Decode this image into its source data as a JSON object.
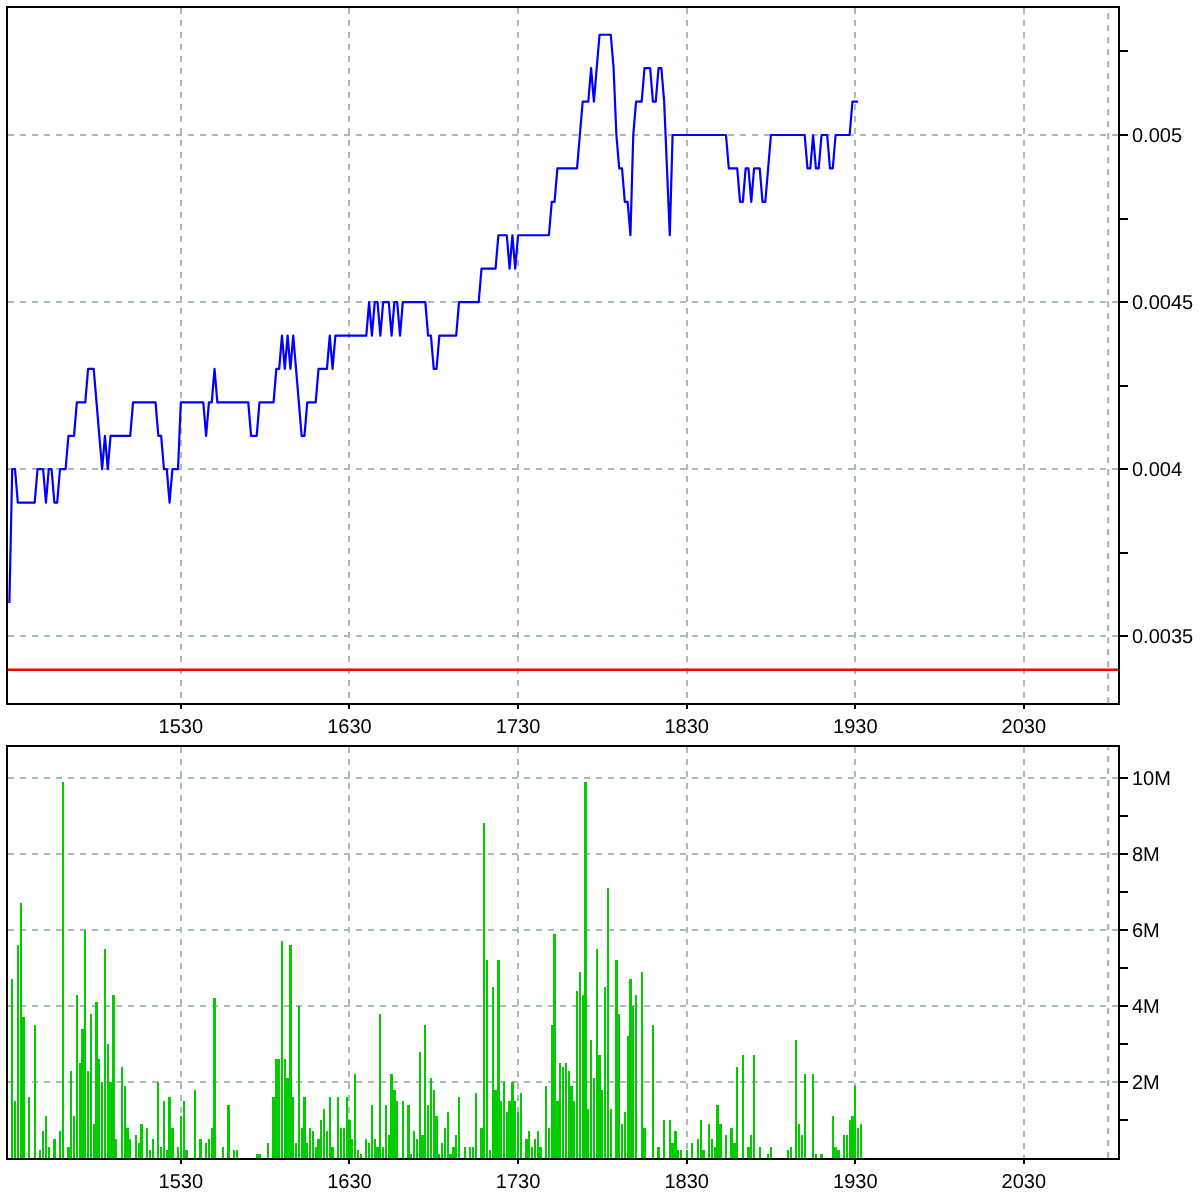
{
  "chart_data": [
    {
      "type": "line",
      "color": "#0000ff",
      "categories": [
        null,
        null,
        null,
        null,
        null,
        null,
        null,
        null,
        null,
        null,
        null,
        null,
        null,
        null,
        null,
        null,
        null,
        null,
        null,
        null,
        null,
        null,
        null,
        null,
        null,
        null,
        null,
        null,
        null,
        null,
        null,
        null,
        null,
        null,
        null,
        null,
        null,
        null,
        null,
        null,
        null,
        null,
        null,
        null,
        null,
        null,
        null,
        null,
        null,
        null,
        null,
        null,
        null,
        null,
        null,
        null,
        null,
        null,
        null,
        null,
        null,
        "1530",
        null,
        null,
        null,
        null,
        null,
        null,
        null,
        null,
        null,
        null,
        null,
        null,
        null,
        null,
        null,
        null,
        null,
        null,
        null,
        null,
        null,
        null,
        null,
        null,
        null,
        null,
        null,
        null,
        null,
        null,
        null,
        null,
        null,
        null,
        null,
        null,
        null,
        null,
        null,
        null,
        null,
        null,
        null,
        null,
        null,
        null,
        null,
        null,
        null,
        null,
        null,
        null,
        null,
        null,
        null,
        null,
        null,
        null,
        null,
        "1630",
        null,
        null,
        null,
        null,
        null,
        null,
        null,
        null,
        null,
        null,
        null,
        null,
        null,
        null,
        null,
        null,
        null,
        null,
        null,
        null,
        null,
        null,
        null,
        null,
        null,
        null,
        null,
        null,
        null,
        null,
        null,
        null,
        null,
        null,
        null,
        null,
        null,
        null,
        null,
        null,
        null,
        null,
        null,
        null,
        null,
        null,
        null,
        null,
        null,
        null,
        null,
        null,
        null,
        null,
        null,
        null,
        null,
        null,
        null,
        "1730",
        null,
        null,
        null,
        null,
        null,
        null,
        null,
        null,
        null,
        null,
        null,
        null,
        null,
        null,
        null,
        null,
        null,
        null,
        null,
        null,
        null,
        null,
        null,
        null,
        null,
        null,
        null,
        null,
        null,
        null,
        null,
        null,
        null,
        null,
        null,
        null,
        null,
        null,
        null,
        null,
        null,
        null,
        null,
        null,
        null,
        null,
        null,
        null,
        null,
        null,
        null,
        null,
        null,
        null,
        null,
        null,
        null,
        null,
        null,
        "1830",
        null,
        null,
        null,
        null,
        null,
        null,
        null,
        null,
        null,
        null,
        null,
        null,
        null,
        null,
        null,
        null,
        null,
        null,
        null,
        null,
        null,
        null,
        null,
        null,
        null,
        null,
        null,
        null,
        null,
        null,
        null,
        null,
        null,
        null,
        null,
        null,
        null,
        null,
        null,
        null,
        null,
        null,
        null,
        null,
        null,
        null,
        null,
        null,
        null,
        null,
        null,
        null,
        null,
        null,
        null,
        null,
        null,
        null,
        null,
        "1930",
        null,
        null,
        null,
        null,
        null,
        null,
        null,
        null,
        null,
        null,
        null,
        null,
        null,
        null,
        null,
        null,
        null,
        null,
        null,
        null,
        null,
        null,
        null,
        null,
        null,
        null,
        null,
        null,
        null,
        null,
        null,
        null,
        null,
        null,
        null,
        null,
        null,
        null,
        null,
        null,
        null,
        null,
        null,
        null,
        null,
        null,
        null,
        null,
        null,
        null,
        null,
        null,
        null,
        null,
        null,
        null,
        null,
        null,
        null,
        "2030",
        null,
        null,
        null,
        null,
        null,
        null,
        null,
        null,
        null,
        null,
        null,
        null,
        null,
        null,
        null,
        null,
        null,
        null,
        null,
        null,
        null,
        null,
        null,
        null,
        null,
        null,
        null,
        null,
        null,
        null,
        null,
        null,
        null
      ],
      "values": [
        0.0036,
        0.004,
        0.004,
        0.0039,
        0.0039,
        0.0039,
        0.0039,
        0.0039,
        0.0039,
        0.0039,
        0.004,
        0.004,
        0.004,
        0.0039,
        0.004,
        0.004,
        0.0039,
        0.0039,
        0.004,
        0.004,
        0.004,
        0.0041,
        0.0041,
        0.0041,
        0.0042,
        0.0042,
        0.0042,
        0.0042,
        0.0043,
        0.0043,
        0.0043,
        0.0042,
        0.0041,
        0.004,
        0.0041,
        0.004,
        0.0041,
        0.0041,
        0.0041,
        0.0041,
        0.0041,
        0.0041,
        0.0041,
        0.0041,
        0.0042,
        0.0042,
        0.0042,
        0.0042,
        0.0042,
        0.0042,
        0.0042,
        0.0042,
        0.0042,
        0.0041,
        0.0041,
        0.004,
        0.004,
        0.0039,
        0.004,
        0.004,
        0.004,
        0.0042,
        0.0042,
        0.0042,
        0.0042,
        0.0042,
        0.0042,
        0.0042,
        0.0042,
        0.0042,
        0.0041,
        0.0042,
        0.0042,
        0.0043,
        0.0042,
        0.0042,
        0.0042,
        0.0042,
        0.0042,
        0.0042,
        0.0042,
        0.0042,
        0.0042,
        0.0042,
        0.0042,
        0.0042,
        0.0041,
        0.0041,
        0.0041,
        0.0042,
        0.0042,
        0.0042,
        0.0042,
        0.0042,
        0.0042,
        0.0043,
        0.0043,
        0.0044,
        0.0043,
        0.0044,
        0.0043,
        0.0044,
        0.0043,
        0.0042,
        0.0041,
        0.0041,
        0.0042,
        0.0042,
        0.0042,
        0.0042,
        0.0043,
        0.0043,
        0.0043,
        0.0043,
        0.0044,
        0.0043,
        0.0044,
        0.0044,
        0.0044,
        0.0044,
        0.0044,
        0.0044,
        0.0044,
        0.0044,
        0.0044,
        0.0044,
        0.0044,
        0.0044,
        0.0045,
        0.0044,
        0.0045,
        0.0045,
        0.0044,
        0.0045,
        0.0045,
        0.0045,
        0.0044,
        0.0045,
        0.0045,
        0.0044,
        0.0045,
        0.0045,
        0.0045,
        0.0045,
        0.0045,
        0.0045,
        0.0045,
        0.0045,
        0.0045,
        0.0044,
        0.0044,
        0.0043,
        0.0043,
        0.0044,
        0.0044,
        0.0044,
        0.0044,
        0.0044,
        0.0044,
        0.0044,
        0.0045,
        0.0045,
        0.0045,
        0.0045,
        0.0045,
        0.0045,
        0.0045,
        0.0045,
        0.0046,
        0.0046,
        0.0046,
        0.0046,
        0.0046,
        0.0046,
        0.0047,
        0.0047,
        0.0047,
        0.0047,
        0.0046,
        0.0047,
        0.0046,
        0.0047,
        0.0047,
        0.0047,
        0.0047,
        0.0047,
        0.0047,
        0.0047,
        0.0047,
        0.0047,
        0.0047,
        0.0047,
        0.0047,
        0.0048,
        0.0048,
        0.0049,
        0.0049,
        0.0049,
        0.0049,
        0.0049,
        0.0049,
        0.0049,
        0.0049,
        0.005,
        0.0051,
        0.0051,
        0.0051,
        0.0052,
        0.0051,
        0.0052,
        0.0053,
        0.0053,
        0.0053,
        0.0053,
        0.0053,
        0.0052,
        0.005,
        0.0049,
        0.0049,
        0.0048,
        0.0048,
        0.0047,
        0.005,
        0.0051,
        0.0051,
        0.0051,
        0.0052,
        0.0052,
        0.0052,
        0.0051,
        0.0051,
        0.0052,
        0.0052,
        0.0051,
        0.0049,
        0.0047,
        0.005,
        0.005,
        0.005,
        0.005,
        0.005,
        0.005,
        0.005,
        0.005,
        0.005,
        0.005,
        0.005,
        0.005,
        0.005,
        0.005,
        0.005,
        0.005,
        0.005,
        0.005,
        0.005,
        0.005,
        0.0049,
        0.0049,
        0.0049,
        0.0049,
        0.0048,
        0.0048,
        0.0049,
        0.0049,
        0.0048,
        0.0049,
        0.0049,
        0.0049,
        0.0048,
        0.0048,
        0.0049,
        0.005,
        0.005,
        0.005,
        0.005,
        0.005,
        0.005,
        0.005,
        0.005,
        0.005,
        0.005,
        0.005,
        0.005,
        0.005,
        0.0049,
        0.0049,
        0.005,
        0.0049,
        0.0049,
        0.005,
        0.005,
        0.005,
        0.0049,
        0.0049,
        0.005,
        0.005,
        0.005,
        0.005,
        0.005,
        0.005,
        0.0051,
        0.0051,
        0.0051,
        null,
        null,
        null,
        null,
        null,
        null,
        null,
        null,
        null,
        null,
        null,
        null,
        null,
        null,
        null,
        null,
        null,
        null,
        null,
        null,
        null,
        null,
        null,
        null,
        null,
        null,
        null,
        null,
        null,
        null,
        null,
        null,
        null,
        null,
        null,
        null,
        null,
        null,
        null,
        null,
        null,
        null,
        null,
        null,
        null,
        null,
        null,
        null,
        null,
        null,
        null,
        null,
        null,
        null,
        null,
        null,
        null,
        null,
        null,
        null,
        null,
        null,
        null,
        null,
        null,
        null,
        null,
        null,
        null,
        null,
        null,
        null,
        null,
        null,
        null,
        null,
        null,
        null,
        null,
        null,
        null,
        null,
        null,
        null,
        null,
        null,
        null,
        null,
        null,
        null,
        null,
        null
      ],
      "ylim": [
        0.0033,
        0.00538
      ],
      "yticks": [
        0.0035,
        {
          "value": 0.00375,
          "label": null
        },
        0.004,
        {
          "value": 0.00425,
          "label": null
        },
        0.0045,
        {
          "value": 0.00475,
          "label": null
        },
        0.005,
        {
          "value": 0.00525,
          "label": null
        }
      ],
      "ref_lines": [
        {
          "axis": "y",
          "value": 0.0034,
          "color": "#ff0000"
        }
      ],
      "grid": true
    },
    {
      "type": "bar",
      "color": "#00cc00",
      "categories": [
        null,
        null,
        null,
        null,
        null,
        null,
        null,
        null,
        null,
        null,
        null,
        null,
        null,
        null,
        null,
        null,
        null,
        null,
        null,
        null,
        null,
        null,
        null,
        null,
        null,
        null,
        null,
        null,
        null,
        null,
        null,
        null,
        null,
        null,
        null,
        null,
        null,
        null,
        null,
        null,
        null,
        null,
        null,
        null,
        null,
        null,
        null,
        null,
        null,
        null,
        null,
        null,
        null,
        null,
        null,
        null,
        null,
        null,
        null,
        null,
        null,
        "1530",
        null,
        null,
        null,
        null,
        null,
        null,
        null,
        null,
        null,
        null,
        null,
        null,
        null,
        null,
        null,
        null,
        null,
        null,
        null,
        null,
        null,
        null,
        null,
        null,
        null,
        null,
        null,
        null,
        null,
        null,
        null,
        null,
        null,
        null,
        null,
        null,
        null,
        null,
        null,
        null,
        null,
        null,
        null,
        null,
        null,
        null,
        null,
        null,
        null,
        null,
        null,
        null,
        null,
        null,
        null,
        null,
        null,
        null,
        null,
        "1630",
        null,
        null,
        null,
        null,
        null,
        null,
        null,
        null,
        null,
        null,
        null,
        null,
        null,
        null,
        null,
        null,
        null,
        null,
        null,
        null,
        null,
        null,
        null,
        null,
        null,
        null,
        null,
        null,
        null,
        null,
        null,
        null,
        null,
        null,
        null,
        null,
        null,
        null,
        null,
        null,
        null,
        null,
        null,
        null,
        null,
        null,
        null,
        null,
        null,
        null,
        null,
        null,
        null,
        null,
        null,
        null,
        null,
        null,
        null,
        "1730",
        null,
        null,
        null,
        null,
        null,
        null,
        null,
        null,
        null,
        null,
        null,
        null,
        null,
        null,
        null,
        null,
        null,
        null,
        null,
        null,
        null,
        null,
        null,
        null,
        null,
        null,
        null,
        null,
        null,
        null,
        null,
        null,
        null,
        null,
        null,
        null,
        null,
        null,
        null,
        null,
        null,
        null,
        null,
        null,
        null,
        null,
        null,
        null,
        null,
        null,
        null,
        null,
        null,
        null,
        null,
        null,
        null,
        null,
        null,
        "1830",
        null,
        null,
        null,
        null,
        null,
        null,
        null,
        null,
        null,
        null,
        null,
        null,
        null,
        null,
        null,
        null,
        null,
        null,
        null,
        null,
        null,
        null,
        null,
        null,
        null,
        null,
        null,
        null,
        null,
        null,
        null,
        null,
        null,
        null,
        null,
        null,
        null,
        null,
        null,
        null,
        null,
        null,
        null,
        null,
        null,
        null,
        null,
        null,
        null,
        null,
        null,
        null,
        null,
        null,
        null,
        null,
        null,
        null,
        null,
        "1930",
        null,
        null,
        null,
        null,
        null,
        null,
        null,
        null,
        null,
        null,
        null,
        null,
        null,
        null,
        null,
        null,
        null,
        null,
        null,
        null,
        null,
        null,
        null,
        null,
        null,
        null,
        null,
        null,
        null,
        null,
        null,
        null,
        null,
        null,
        null,
        null,
        null,
        null,
        null,
        null,
        null,
        null,
        null,
        null,
        null,
        null,
        null,
        null,
        null,
        null,
        null,
        null,
        null,
        null,
        null,
        null,
        null,
        null,
        null,
        "2030",
        null,
        null,
        null,
        null,
        null,
        null,
        null,
        null,
        null,
        null,
        null,
        null,
        null,
        null,
        null,
        null,
        null,
        null,
        null,
        null,
        null,
        null,
        null,
        null,
        null,
        null,
        null,
        null,
        null,
        null,
        null,
        null,
        null
      ],
      "values": [
        null,
        4.7,
        1.5,
        5.6,
        6.7,
        3.7,
        null,
        1.6,
        null,
        3.5,
        null,
        0.2,
        0.7,
        1.1,
        0.3,
        null,
        0.5,
        null,
        0.7,
        9.9,
        null,
        0.3,
        2.3,
        1.1,
        4.3,
        2.5,
        3.4,
        6.0,
        2.3,
        3.8,
        0.9,
        4.1,
        2.6,
        2.0,
        5.5,
        3.0,
        2.0,
        4.3,
        0.5,
        null,
        2.4,
        1.9,
        0.8,
        0.5,
        null,
        0.6,
        0.4,
        0.9,
        null,
        0.8,
        0.2,
        0.5,
        null,
        2.0,
        0.3,
        1.5,
        0.2,
        1.6,
        0.8,
        null,
        0.3,
        1.1,
        1.5,
        0.2,
        null,
        null,
        1.8,
        null,
        0.5,
        null,
        0.4,
        0.5,
        0.8,
        4.2,
        null,
        null,
        0.3,
        null,
        1.4,
        null,
        0.2,
        0.2,
        null,
        null,
        null,
        null,
        null,
        null,
        0.1,
        0.1,
        null,
        null,
        0.4,
        null,
        1.6,
        2.6,
        2.6,
        5.7,
        2.6,
        2.1,
        5.6,
        1.6,
        0.4,
        4.0,
        0.8,
        1.6,
        0.4,
        0.8,
        0.7,
        0.3,
        0.5,
        1.0,
        1.3,
        0.7,
        1.6,
        0.3,
        null,
        1.6,
        0.8,
        0.8,
        1.6,
        1.0,
        0.5,
        2.2,
        0.2,
        0.1,
        null,
        0.5,
        0.4,
        1.4,
        0.5,
        0.3,
        3.8,
        0.3,
        1.4,
        0.6,
        2.2,
        1.8,
        1.5,
        null,
        1.5,
        null,
        1.4,
        0.1,
        0.7,
        0.5,
        2.8,
        0.6,
        3.5,
        1.4,
        2.1,
        1.8,
        1.1,
        0.1,
        0.4,
        0.8,
        1.2,
        0.1,
        0.3,
        0.6,
        1.6,
        null,
        0.3,
        null,
        0.3,
        0.3,
        1.7,
        null,
        0.8,
        8.8,
        5.2,
        0.2,
        4.5,
        1.8,
        5.2,
        1.5,
        2.0,
        1.2,
        1.5,
        2.0,
        1.5,
        1.2,
        1.7,
        null,
        0.5,
        0.7,
        0.3,
        0.5,
        0.7,
        0.3,
        null,
        1.9,
        0.8,
        3.5,
        5.9,
        1.5,
        2.5,
        2.4,
        2.5,
        2.3,
        1.9,
        1.5,
        4.4,
        4.9,
        4.3,
        9.9,
        1.3,
        3.1,
        2.1,
        5.5,
        2.7,
        1.8,
        4.5,
        7.1,
        1.3,
        null,
        5.2,
        3.8,
        0.9,
        1.2,
        3.2,
        4.7,
        4.0,
        4.3,
        null,
        4.9,
        0.8,
        null,
        null,
        3.5,
        null,
        0.3,
        null,
        1.0,
        null,
        1.0,
        0.4,
        0.7,
        0.2,
        0.2,
        null,
        0.2,
        null,
        0.4,
        null,
        0.5,
        1.0,
        0.2,
        null,
        0.9,
        0.5,
        0.3,
        1.4,
        0.9,
        null,
        0.6,
        null,
        0.8,
        0.4,
        2.4,
        null,
        2.7,
        null,
        0.3,
        0.6,
        2.7,
        null,
        0.3,
        null,
        null,
        0.1,
        0.3,
        null,
        null,
        null,
        null,
        null,
        0.2,
        0.3,
        null,
        3.1,
        0.9,
        0.6,
        2.2,
        null,
        null,
        2.2,
        0.1,
        null,
        0.1,
        null,
        null,
        null,
        1.1,
        0.3,
        0.2,
        null,
        0.6,
        0.6,
        1.0,
        1.1,
        1.9,
        0.8,
        0.9,
        null,
        null,
        null,
        null,
        null,
        null,
        null,
        null,
        null,
        null,
        null,
        null,
        null,
        null,
        null,
        null,
        null,
        null,
        null,
        null,
        null,
        null,
        null,
        null,
        null,
        null,
        null,
        null,
        null,
        null,
        null,
        null,
        null,
        null,
        null,
        null,
        null,
        null,
        null,
        null,
        null,
        null,
        null,
        null,
        null,
        null,
        null,
        null,
        null,
        null,
        null,
        null,
        null,
        null,
        null,
        null,
        null,
        null,
        null,
        null,
        null,
        null,
        null,
        null,
        null,
        null,
        null,
        null,
        null,
        null,
        null,
        null,
        null,
        null,
        null,
        null,
        null,
        null,
        null,
        null,
        null,
        null,
        null,
        null,
        null,
        null,
        null,
        null,
        null,
        null,
        null
      ],
      "ylim": [
        0,
        10.8
      ],
      "yticks": [
        {
          "value": 1,
          "label": null
        },
        {
          "value": 2,
          "label": "2M"
        },
        {
          "value": 3,
          "label": null
        },
        {
          "value": 4,
          "label": "4M"
        },
        {
          "value": 5,
          "label": null
        },
        {
          "value": 6,
          "label": "6M"
        },
        {
          "value": 7,
          "label": null
        },
        {
          "value": 8,
          "label": "8M"
        },
        {
          "value": 9,
          "label": null
        },
        {
          "value": 10,
          "label": "10M"
        }
      ],
      "grid": true
    }
  ]
}
